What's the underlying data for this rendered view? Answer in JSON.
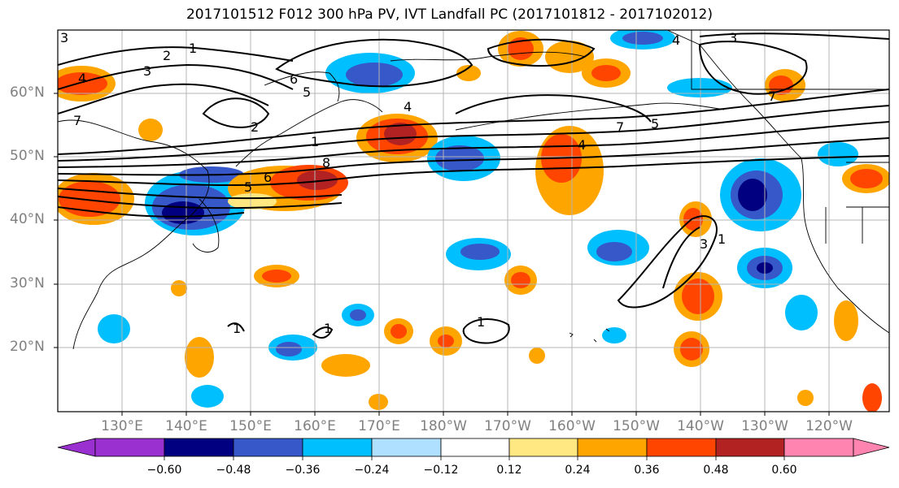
{
  "title": "2017101512 F012 300 hPa PV, IVT Landfall PC (2017101812 - 2017102012)",
  "lat_ticks": [
    "60°N",
    "50°N",
    "40°N",
    "30°N",
    "20°N"
  ],
  "lon_ticks": [
    "130°E",
    "140°E",
    "150°E",
    "160°E",
    "170°E",
    "180°W",
    "170°W",
    "160°W",
    "150°W",
    "140°W",
    "130°W",
    "120°W"
  ],
  "colorbar": {
    "colors": [
      "#9b30d0",
      "#000080",
      "#3658c8",
      "#00bfff",
      "#b0e0ff",
      "#ffffff",
      "#ffe882",
      "#ffa500",
      "#ff4500",
      "#b22222",
      "#ff85b0"
    ],
    "tick_labels": [
      "−0.60",
      "−0.48",
      "−0.36",
      "−0.24",
      "−0.12",
      "0.12",
      "0.24",
      "0.36",
      "0.48",
      "0.60"
    ]
  },
  "contour_labels": [
    "1",
    "2",
    "3",
    "4",
    "5",
    "6",
    "7",
    "8"
  ]
}
